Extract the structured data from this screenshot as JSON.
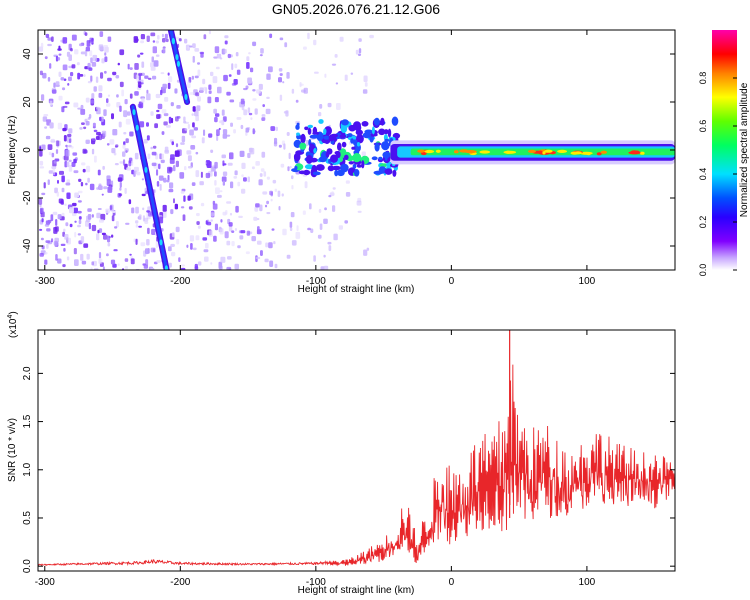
{
  "title": "GN05.2026.076.21.12.G06",
  "chart_data": [
    {
      "type": "heatmap",
      "name": "spectrogram",
      "xlabel": "Height of straight line (km)",
      "ylabel": "Frequency (Hz)",
      "xlim": [
        -305,
        165
      ],
      "ylim": [
        -50,
        50
      ],
      "xticks": [
        -300,
        -200,
        -100,
        0,
        100
      ],
      "yticks": [
        -40,
        -20,
        0,
        20,
        40
      ],
      "colorbar": {
        "label": "Normalized spectral amplitude",
        "range": [
          0.0,
          1.0
        ],
        "ticks": [
          0.0,
          0.2,
          0.4,
          0.6,
          0.8
        ],
        "colormap": [
          "#ffffff",
          "#8000ff",
          "#0000ff",
          "#00ffff",
          "#00ff00",
          "#ffff00",
          "#ff0000",
          "#ff00ff"
        ]
      },
      "features": [
        {
          "name": "steep-streak-left",
          "x": [
            -235,
            -210
          ],
          "y": [
            18,
            -50
          ]
        },
        {
          "name": "steep-streak-right",
          "x": [
            -207,
            -195
          ],
          "y": [
            50,
            20
          ]
        },
        {
          "name": "central-band",
          "x": [
            -120,
            165
          ],
          "y": [
            -2,
            0
          ]
        }
      ]
    },
    {
      "type": "line",
      "name": "snr",
      "xlabel": "Height of straight line (km)",
      "ylabel": "SNR (10 * v/v)",
      "scale_label": "(x10",
      "scale_exp": "4",
      "xlim": [
        -305,
        165
      ],
      "ylim": [
        -0.05,
        2.45
      ],
      "xticks": [
        -300,
        -200,
        -100,
        0,
        100
      ],
      "yticks": [
        0.0,
        0.5,
        1.0,
        1.5,
        2.0
      ],
      "color": "#e8262a",
      "envelope": {
        "x": [
          -305,
          -230,
          -220,
          -200,
          -150,
          -100,
          -75,
          -60,
          -50,
          -40,
          -35,
          -30,
          -25,
          -20,
          -15,
          -10,
          -5,
          0,
          10,
          20,
          30,
          40,
          43,
          50,
          60,
          70,
          80,
          90,
          100,
          110,
          120,
          130,
          140,
          150,
          160,
          165
        ],
        "y": [
          0.02,
          0.05,
          0.07,
          0.04,
          0.03,
          0.04,
          0.08,
          0.2,
          0.3,
          0.45,
          0.75,
          0.55,
          0.3,
          0.55,
          0.9,
          0.95,
          1.2,
          1.05,
          1.1,
          1.4,
          1.35,
          1.7,
          2.4,
          1.6,
          1.45,
          1.5,
          1.3,
          1.2,
          1.4,
          1.45,
          1.3,
          1.25,
          1.2,
          1.15,
          1.15,
          1.05
        ],
        "low": [
          0.0,
          0.0,
          0.0,
          0.0,
          0.0,
          0.0,
          0.0,
          0.02,
          0.05,
          0.1,
          0.1,
          0.05,
          0.0,
          0.05,
          0.15,
          0.25,
          0.3,
          0.2,
          0.3,
          0.35,
          0.4,
          0.3,
          0.5,
          0.4,
          0.45,
          0.5,
          0.5,
          0.55,
          0.6,
          0.6,
          0.6,
          0.6,
          0.65,
          0.6,
          0.7,
          0.7
        ]
      }
    }
  ]
}
